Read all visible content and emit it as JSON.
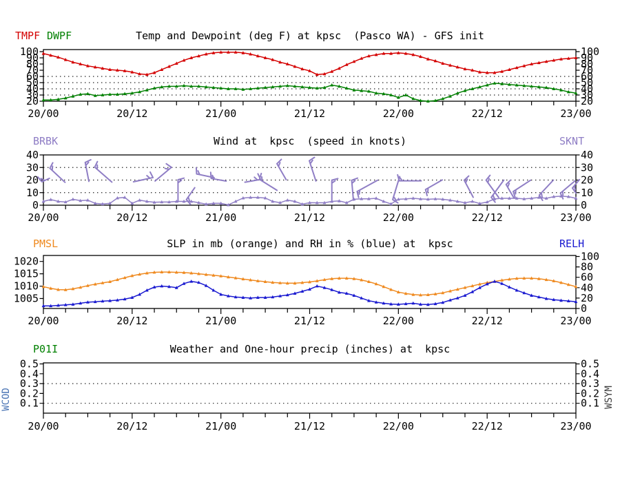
{
  "station": "kpsc",
  "station_name": "Pasco WA",
  "model": "GFS",
  "x_axis": {
    "hours_span": 72,
    "minor_step_hours": 3,
    "major_ticks": [
      {
        "h": 0,
        "label": "20/00"
      },
      {
        "h": 12,
        "label": "20/12"
      },
      {
        "h": 24,
        "label": "21/00"
      },
      {
        "h": 36,
        "label": "21/12"
      },
      {
        "h": 48,
        "label": "22/00"
      },
      {
        "h": 60,
        "label": "22/12"
      },
      {
        "h": 72,
        "label": "23/00"
      }
    ]
  },
  "colors": {
    "tmpf": "#d40000",
    "dwpf": "#008000",
    "wind": "#8f7ec5",
    "pmsl": "#ef8a20",
    "relh": "#1a1ad0",
    "p01i": "#008000",
    "wcod": "#4a74b4",
    "wsym": "#3f3f3f",
    "axis": "#000000",
    "grid": "#1a1a1a"
  },
  "chart_data": [
    {
      "panel": "temp_dewpoint",
      "type": "line",
      "title": "Temp and Dewpoint (deg F) at kpsc  (Pasco WA) - GFS init",
      "legend": [
        {
          "label": "TMPF",
          "color": "#d40000"
        },
        {
          "label": "DWPF",
          "color": "#008000"
        }
      ],
      "ylabel": "deg F",
      "ylim": [
        20,
        100
      ],
      "yticks": [
        {
          "v": 20,
          "t": "20"
        },
        {
          "v": 30,
          "t": "30"
        },
        {
          "v": 40,
          "t": "40"
        },
        {
          "v": 50,
          "t": "50"
        },
        {
          "v": 60,
          "t": "60"
        },
        {
          "v": 70,
          "t": "70"
        },
        {
          "v": 80,
          "t": "80"
        },
        {
          "v": 90,
          "t": "90"
        },
        {
          "v": 100,
          "t": "100"
        }
      ],
      "grid_dotted_at": [
        30,
        40,
        50,
        60
      ],
      "x_step_hours": 1,
      "series": [
        {
          "name": "TMPF",
          "color": "#d40000",
          "values": [
            97,
            94,
            91,
            87,
            83,
            80,
            77,
            75,
            73,
            71,
            70,
            69,
            67,
            64,
            63,
            66,
            71,
            76,
            81,
            86,
            90,
            93,
            96,
            98,
            99,
            99,
            99,
            98,
            96,
            93,
            90,
            87,
            83,
            80,
            76,
            72,
            69,
            63,
            64,
            68,
            73,
            79,
            84,
            89,
            93,
            95,
            97,
            97,
            98,
            97,
            95,
            92,
            88,
            85,
            81,
            78,
            75,
            72,
            70,
            67,
            66,
            66,
            68,
            71,
            74,
            77,
            80,
            82,
            84,
            86,
            88,
            89,
            90
          ]
        },
        {
          "name": "DWPF",
          "color": "#008000",
          "values": [
            22,
            22,
            23,
            25,
            28,
            31,
            32,
            29,
            30,
            31,
            31,
            32,
            33,
            35,
            38,
            41,
            43,
            44,
            44,
            45,
            44,
            44,
            43,
            42,
            41,
            40,
            40,
            39,
            40,
            41,
            42,
            43,
            44,
            45,
            44,
            43,
            42,
            41,
            42,
            46,
            44,
            41,
            38,
            37,
            36,
            33,
            32,
            30,
            26,
            30,
            24,
            21,
            20,
            21,
            24,
            28,
            33,
            37,
            40,
            43,
            46,
            49,
            48,
            47,
            46,
            45,
            44,
            43,
            42,
            40,
            38,
            35,
            33
          ]
        }
      ]
    },
    {
      "panel": "wind",
      "type": "line+barbs",
      "title": "Wind at  kpsc  (speed in knots)",
      "left_label": "BRBK",
      "right_label": "SKNT",
      "ylabel": "knots",
      "ylim": [
        0,
        40
      ],
      "yticks": [
        {
          "v": 0,
          "t": "0"
        },
        {
          "v": 10,
          "t": "10"
        },
        {
          "v": 20,
          "t": "20"
        },
        {
          "v": 30,
          "t": "30"
        },
        {
          "v": 40,
          "t": "40"
        }
      ],
      "grid_dotted_at": [
        10,
        20,
        30
      ],
      "x_step_hours": 1,
      "series": [
        {
          "name": "SKNT",
          "color": "#8f7ec5",
          "values": [
            3,
            4.5,
            3,
            2.5,
            4.7,
            3.6,
            4,
            1.5,
            1,
            1.5,
            5.7,
            6.2,
            1.5,
            4,
            3,
            2.3,
            2.5,
            2.5,
            3,
            3,
            3,
            2,
            0.8,
            1.5,
            1.5,
            0.2,
            3,
            5.7,
            6.2,
            6.2,
            5.7,
            3,
            2,
            4,
            3,
            0.8,
            2,
            1.9,
            1.9,
            3,
            3.4,
            1.9,
            4.7,
            5.1,
            5.1,
            5.5,
            3,
            1,
            4.7,
            5,
            5.5,
            5,
            4.7,
            5,
            4.7,
            4,
            3,
            1.9,
            3,
            1.3,
            2.5,
            5,
            5.5,
            5.5,
            5.5,
            5,
            5.5,
            6.2,
            5.5,
            6.8,
            7.2,
            6.8,
            5.5
          ]
        }
      ],
      "barbs": {
        "name": "BRBK",
        "color": "#8f7ec5",
        "items": [
          {
            "h": 0.3,
            "v": 20,
            "a": -25,
            "len": 12,
            "e": 1,
            "s": -1
          },
          {
            "h": 1.9,
            "v": 23.8,
            "a": 43,
            "len": 30,
            "e": 1,
            "s": -1
          },
          {
            "h": 5.9,
            "v": 26.5,
            "a": 79,
            "len": 28,
            "e": 1,
            "s": -1
          },
          {
            "h": 8.1,
            "v": 24.3,
            "a": 41,
            "len": 33,
            "e": 1,
            "s": -1
          },
          {
            "h": 13.5,
            "v": 20.3,
            "a": -12,
            "len": 29,
            "e": 2,
            "s": -1
          },
          {
            "h": 16.2,
            "v": 24.7,
            "a": -40,
            "len": 31,
            "e": 2,
            "s": -1
          },
          {
            "h": 18.2,
            "v": 11.5,
            "a": 90,
            "len": 32,
            "e": 1,
            "s": -1
          },
          {
            "h": 19.9,
            "v": 9.2,
            "a": -55,
            "len": 21,
            "e": 1,
            "s": 1
          },
          {
            "h": 21.9,
            "v": 23.4,
            "a": 12,
            "len": 26,
            "e": 1,
            "s": -1
          },
          {
            "h": 23.7,
            "v": 20.2,
            "a": 10,
            "len": 22,
            "e": 1,
            "s": -1
          },
          {
            "h": 28.3,
            "v": 19.4,
            "a": -10,
            "len": 23,
            "e": 2,
            "s": -1
          },
          {
            "h": 30.4,
            "v": 16.2,
            "a": 32,
            "len": 30,
            "e": 1,
            "s": -1
          },
          {
            "h": 32.2,
            "v": 26.6,
            "a": 60,
            "len": 27,
            "e": 1,
            "s": -1
          },
          {
            "h": 36.4,
            "v": 27.3,
            "a": 72,
            "len": 31,
            "e": 1,
            "s": -1
          },
          {
            "h": 39.0,
            "v": 11.7,
            "a": 90,
            "len": 30,
            "e": 1,
            "s": -1
          },
          {
            "h": 41.8,
            "v": 11.9,
            "a": 85,
            "len": 29,
            "e": 1,
            "s": -1
          },
          {
            "h": 43.8,
            "v": 15.4,
            "a": -29,
            "len": 34,
            "e": 1,
            "s": 1
          },
          {
            "h": 47.7,
            "v": 13.6,
            "a": -73,
            "len": 35,
            "e": 1,
            "s": 1
          },
          {
            "h": 49.6,
            "v": 19.4,
            "a": 0,
            "len": 32,
            "e": 1,
            "s": -1
          },
          {
            "h": 52.8,
            "v": 16.3,
            "a": -30,
            "len": 28,
            "e": 1,
            "s": 1
          },
          {
            "h": 57.5,
            "v": 13.1,
            "a": 62,
            "len": 28,
            "e": 1,
            "s": -1
          },
          {
            "h": 60.7,
            "v": 13.1,
            "a": 54,
            "len": 31,
            "e": 1,
            "s": -1
          },
          {
            "h": 61.4,
            "v": 13.1,
            "a": -54,
            "len": 31,
            "e": 1,
            "s": 1
          },
          {
            "h": 63.1,
            "v": 11.0,
            "a": 60,
            "len": 23,
            "e": 1,
            "s": -1
          },
          {
            "h": 64.7,
            "v": 15.4,
            "a": -33,
            "len": 30,
            "e": 1,
            "s": 1
          },
          {
            "h": 68.0,
            "v": 14.0,
            "a": -47,
            "len": 30,
            "e": 1,
            "s": 1
          },
          {
            "h": 70.9,
            "v": 14.5,
            "a": -40,
            "len": 28,
            "e": 1,
            "s": 1
          },
          {
            "h": 72.0,
            "v": 17.0,
            "a": -50,
            "len": 16,
            "e": 1,
            "s": 1
          }
        ]
      }
    },
    {
      "panel": "slp_rh",
      "type": "line",
      "title": "SLP in mb (orange) and RH in % (blue) at  kpsc",
      "left_label": "PMSL",
      "right_label": "RELH",
      "ylim_left": [
        1002,
        1021.5
      ],
      "ylim_right": [
        0,
        100
      ],
      "yticks_left": [
        {
          "v": 1005,
          "t": "1005"
        },
        {
          "v": 1010,
          "t": "1010"
        },
        {
          "v": 1015,
          "t": "1015"
        },
        {
          "v": 1020,
          "t": "1020"
        }
      ],
      "yticks_right": [
        {
          "v": 0,
          "t": "0"
        },
        {
          "v": 20,
          "t": "20"
        },
        {
          "v": 40,
          "t": "40"
        },
        {
          "v": 60,
          "t": "60"
        },
        {
          "v": 80,
          "t": "80"
        },
        {
          "v": 100,
          "t": "100"
        }
      ],
      "grid_dotted_at": [],
      "x_step_hours": 1,
      "series": [
        {
          "name": "PMSL",
          "axis": "left",
          "color": "#ef8a20",
          "values": [
            1009.8,
            1009.1,
            1008.6,
            1008.5,
            1008.9,
            1009.5,
            1010.2,
            1010.8,
            1011.3,
            1011.8,
            1012.6,
            1013.4,
            1014.2,
            1014.8,
            1015.3,
            1015.6,
            1015.7,
            1015.7,
            1015.6,
            1015.5,
            1015.3,
            1015,
            1014.7,
            1014.4,
            1014.1,
            1013.7,
            1013.3,
            1012.9,
            1012.5,
            1012.1,
            1011.8,
            1011.5,
            1011.3,
            1011.2,
            1011.2,
            1011.4,
            1011.7,
            1012.1,
            1012.6,
            1013,
            1013.2,
            1013.2,
            1013,
            1012.5,
            1011.8,
            1010.9,
            1009.8,
            1008.6,
            1007.6,
            1007,
            1006.6,
            1006.4,
            1006.5,
            1006.8,
            1007.3,
            1008,
            1008.7,
            1009.4,
            1010.1,
            1010.8,
            1011.4,
            1011.9,
            1012.4,
            1012.8,
            1013.1,
            1013.2,
            1013.2,
            1013,
            1012.6,
            1012.1,
            1011.4,
            1010.6,
            1009.8
          ]
        },
        {
          "name": "RELH",
          "axis": "right",
          "color": "#1a1ad0",
          "values": [
            5,
            5,
            6,
            7,
            8,
            10,
            12,
            13,
            14,
            15,
            16,
            18,
            21,
            27,
            35,
            41,
            43,
            42,
            40,
            48,
            52,
            50,
            44,
            35,
            27,
            24,
            22,
            21,
            20,
            21,
            21,
            22,
            24,
            26,
            29,
            33,
            37,
            43,
            40,
            36,
            31,
            29,
            25,
            20,
            15,
            12,
            10,
            8.5,
            8,
            9,
            10,
            8,
            7.5,
            9,
            11.5,
            16,
            20,
            25,
            32,
            40,
            47,
            52,
            48,
            41,
            35,
            30,
            25,
            22,
            19,
            17,
            15.5,
            14.5,
            13
          ]
        }
      ]
    },
    {
      "panel": "precip_weather",
      "type": "line",
      "title": "Weather and One-hour precip (inches) at  kpsc",
      "left_label": "P01I",
      "side_labels": {
        "left": "WCOD",
        "right": "WSYM"
      },
      "ylim": [
        0,
        0.5
      ],
      "yticks": [
        {
          "v": 0.1,
          "t": "0.1"
        },
        {
          "v": 0.2,
          "t": "0.2"
        },
        {
          "v": 0.3,
          "t": "0.3"
        },
        {
          "v": 0.4,
          "t": "0.4"
        },
        {
          "v": 0.5,
          "t": "0.5"
        }
      ],
      "grid_dotted_at": [
        0.1,
        0.3
      ],
      "series": []
    }
  ]
}
